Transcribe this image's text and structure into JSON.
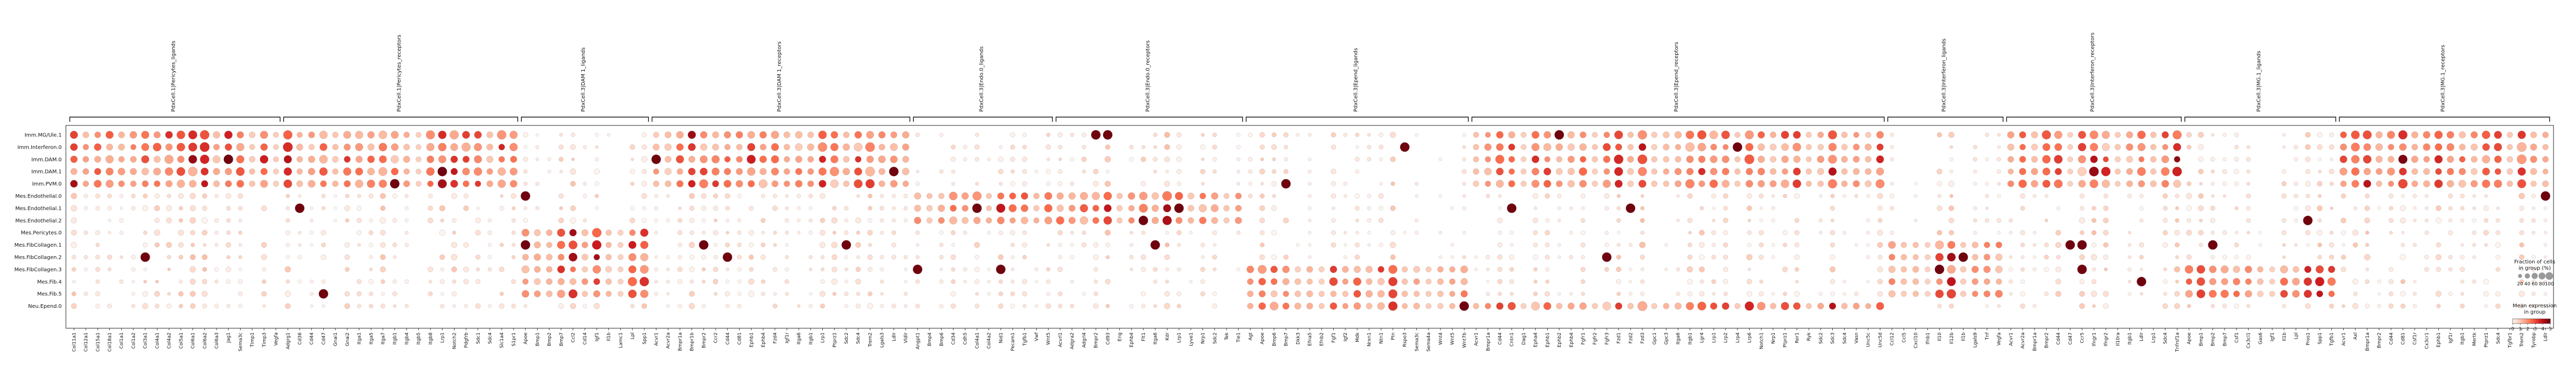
{
  "chart_data": {
    "type": "dotplot",
    "groups": [
      {
        "label": "PdxCell.1|Pericytes_ligands",
        "genes": [
          "Col11a1",
          "Col12a1",
          "Col15a1",
          "Col18a1",
          "Col1a1",
          "Col1a2",
          "Col3a1",
          "Col4a1",
          "Col4a2",
          "Col5a1",
          "Col6a1",
          "Col6a2",
          "Col6a3",
          "Jag1",
          "Sema3c",
          "Timp1",
          "Timp3",
          "Vegfa"
        ]
      },
      {
        "label": "PdxCell.1|Pericytes_receptors",
        "genes": [
          "Adgrg1",
          "Cd36",
          "Cd44",
          "Cd47",
          "Gnai1",
          "Gnai2",
          "Itga1",
          "Itga5",
          "Itga7",
          "Itgb1",
          "Itgb4",
          "Itgb5",
          "Itgb8",
          "Lrp1",
          "Notch2",
          "Pdgfrb",
          "Sdc1",
          "Sdc4",
          "Slc1a4",
          "S1pr1"
        ]
      },
      {
        "label": "PdxCell.3|DAM 1_ligands",
        "genes": [
          "Apoe",
          "Bmp1",
          "Bmp2",
          "Bmp7",
          "Ccl2",
          "Cd14",
          "Igf1",
          "Il1b",
          "Lamc1",
          "Lpl",
          "Spp1"
        ]
      },
      {
        "label": "PdxCell.3|DAM 1_receptors",
        "genes": [
          "Acvr1",
          "Acvr2a",
          "Bmpr1a",
          "Bmpr1b",
          "Bmpr2",
          "Ccr2",
          "Cd44",
          "Cd81",
          "Ephb1",
          "Ephb4",
          "Fzd4",
          "Igf1r",
          "Itga6",
          "Itgb1",
          "Lrp1",
          "Ptprz1",
          "Sdc2",
          "Sdc4",
          "Trem2",
          "Lgals3",
          "Ldlr",
          "Vldlr"
        ]
      },
      {
        "label": "PdxCell.3|Endo.0_ligands",
        "genes": [
          "Angpt1",
          "Bmp4",
          "Bmp6",
          "Cd34",
          "Cdh5",
          "Col4a1",
          "Col4a2",
          "Nid1",
          "Pecam1",
          "Tgfb1",
          "Vwf",
          "Wnt5"
        ]
      },
      {
        "label": "PdxCell.3|Endo.0_receptors",
        "genes": [
          "Acvrl1",
          "Adgra2",
          "Adgrl4",
          "Bmpr2",
          "Cd93",
          "Eng",
          "Ephb4",
          "Flt1",
          "Itga6",
          "Kdr",
          "Lrp1",
          "Lyve1",
          "Nrp1",
          "Sdc2",
          "Tek",
          "Tie1"
        ]
      },
      {
        "label": "PdxCell.3|Epend_ligands",
        "genes": [
          "Agt",
          "Apoe",
          "Bmp6",
          "Bmp7",
          "Dkk3",
          "Efna5",
          "Efnb2",
          "Fgf1",
          "Igf2",
          "Mdk",
          "Nrxn1",
          "Ntn1",
          "Ptn",
          "Rspo3",
          "Sema3c",
          "Sema4a",
          "Wnt4",
          "Wnt5",
          "Wnt7b"
        ]
      },
      {
        "label": "PdxCell.3|Epend_receptors",
        "genes": [
          "Acvr1",
          "Bmpr1a",
          "Cd44",
          "Cntn1",
          "Dag1",
          "Epha4",
          "Ephb1",
          "Ephb2",
          "Ephb4",
          "Fgfr1",
          "Fgfr2",
          "Fgfr3",
          "Fzd1",
          "Fzd2",
          "Fzd3",
          "Gpc1",
          "Gpc3",
          "Itga6",
          "Itgb1",
          "Lgr4",
          "Lrp1",
          "Lrp2",
          "Lrp4",
          "Lrp6",
          "Notch1",
          "Nrp1",
          "Ptprz1",
          "Ror1",
          "Ryk",
          "Sdc2",
          "Sdc3",
          "Sdc4",
          "Vasn",
          "Unc5c",
          "Unc5d"
        ]
      },
      {
        "label": "PdxCell.3|Interferon_ligands",
        "genes": [
          "Ccl12",
          "Ccl5",
          "Cxcl10",
          "Ifnb1",
          "Il10",
          "Il12b",
          "Il1b",
          "Lgals9",
          "Tnf",
          "Vegfa"
        ]
      },
      {
        "label": "PdxCell.3|Interferon_receptors",
        "genes": [
          "Acvr1",
          "Acvr2a",
          "Bmpr1a",
          "Bmpr2",
          "Cd44",
          "Cd47",
          "Ccr5",
          "Ifngr1",
          "Ifngr2",
          "Il10ra",
          "Itgb1",
          "Ldlr",
          "Lrp1",
          "Sdc4",
          "Tnfrsf1a"
        ]
      },
      {
        "label": "PdxCell.3|MG.1_ligands",
        "genes": [
          "Apoe",
          "Bmp1",
          "Bmp2",
          "Bmp7",
          "Csf1",
          "Cx3cl1",
          "Gas6",
          "Igf1",
          "Il1b",
          "Lpl",
          "Pros1",
          "Spp1",
          "Tgfb1"
        ]
      },
      {
        "label": "PdxCell.3|MG.1_receptors",
        "genes": [
          "Acvr1",
          "Axl",
          "Bmpr1a",
          "Bmpr2",
          "Cd44",
          "Cd81",
          "Csf1r",
          "Cx3cr1",
          "Ephb1",
          "Igf1r",
          "Itgb1",
          "Mertk",
          "Ptprz1",
          "Sdc4",
          "Tgfbr1",
          "Trem2",
          "Tyrobp",
          "Ldlr"
        ]
      }
    ],
    "rows": [
      "Imm.MG/Ule.1",
      "Imm.Interferon.0",
      "Imm.DAM.0",
      "Imm.DAM.1",
      "Imm.PVM.0",
      "Mes.Endothelial.0",
      "Mes.Endothelial.1",
      "Mes.Endothelial.2",
      "Mes.Pericytes.0",
      "Mes.FibCollagen.1",
      "Mes.FibCollagen.2",
      "Mes.FibCollagen.3",
      "Mes.Fib.4",
      "Mes.Fib.5",
      "Neu.Epend.0"
    ],
    "fraction_levels": [
      20,
      40,
      60,
      80,
      100
    ],
    "color_scale": [
      "#fff5f0",
      "#fcbba1",
      "#fb6a4a",
      "#cb181d",
      "#67000d"
    ],
    "color_ticks": [
      0,
      1,
      2,
      3,
      4,
      5
    ],
    "hot_rows": [
      [
        0,
        1,
        2,
        3,
        4
      ],
      [
        0,
        1,
        2,
        3,
        4
      ],
      [
        8,
        9,
        10,
        11,
        12,
        13
      ],
      [
        0,
        1,
        2,
        3,
        4
      ],
      [
        5,
        6,
        7
      ],
      [
        5,
        6,
        7
      ],
      [
        11,
        12,
        13,
        14
      ],
      [
        0,
        1,
        2,
        3,
        4,
        14
      ],
      [
        9,
        10,
        11,
        12,
        13
      ],
      [
        0,
        1,
        2,
        3,
        4
      ],
      [
        11,
        12,
        13
      ],
      [
        0,
        1,
        2,
        3,
        4
      ]
    ],
    "legend": {
      "size_title_1": "Fraction of cells",
      "size_title_2": "in group (%)",
      "color_title_1": "Mean expression",
      "color_title_2": "in group"
    }
  }
}
